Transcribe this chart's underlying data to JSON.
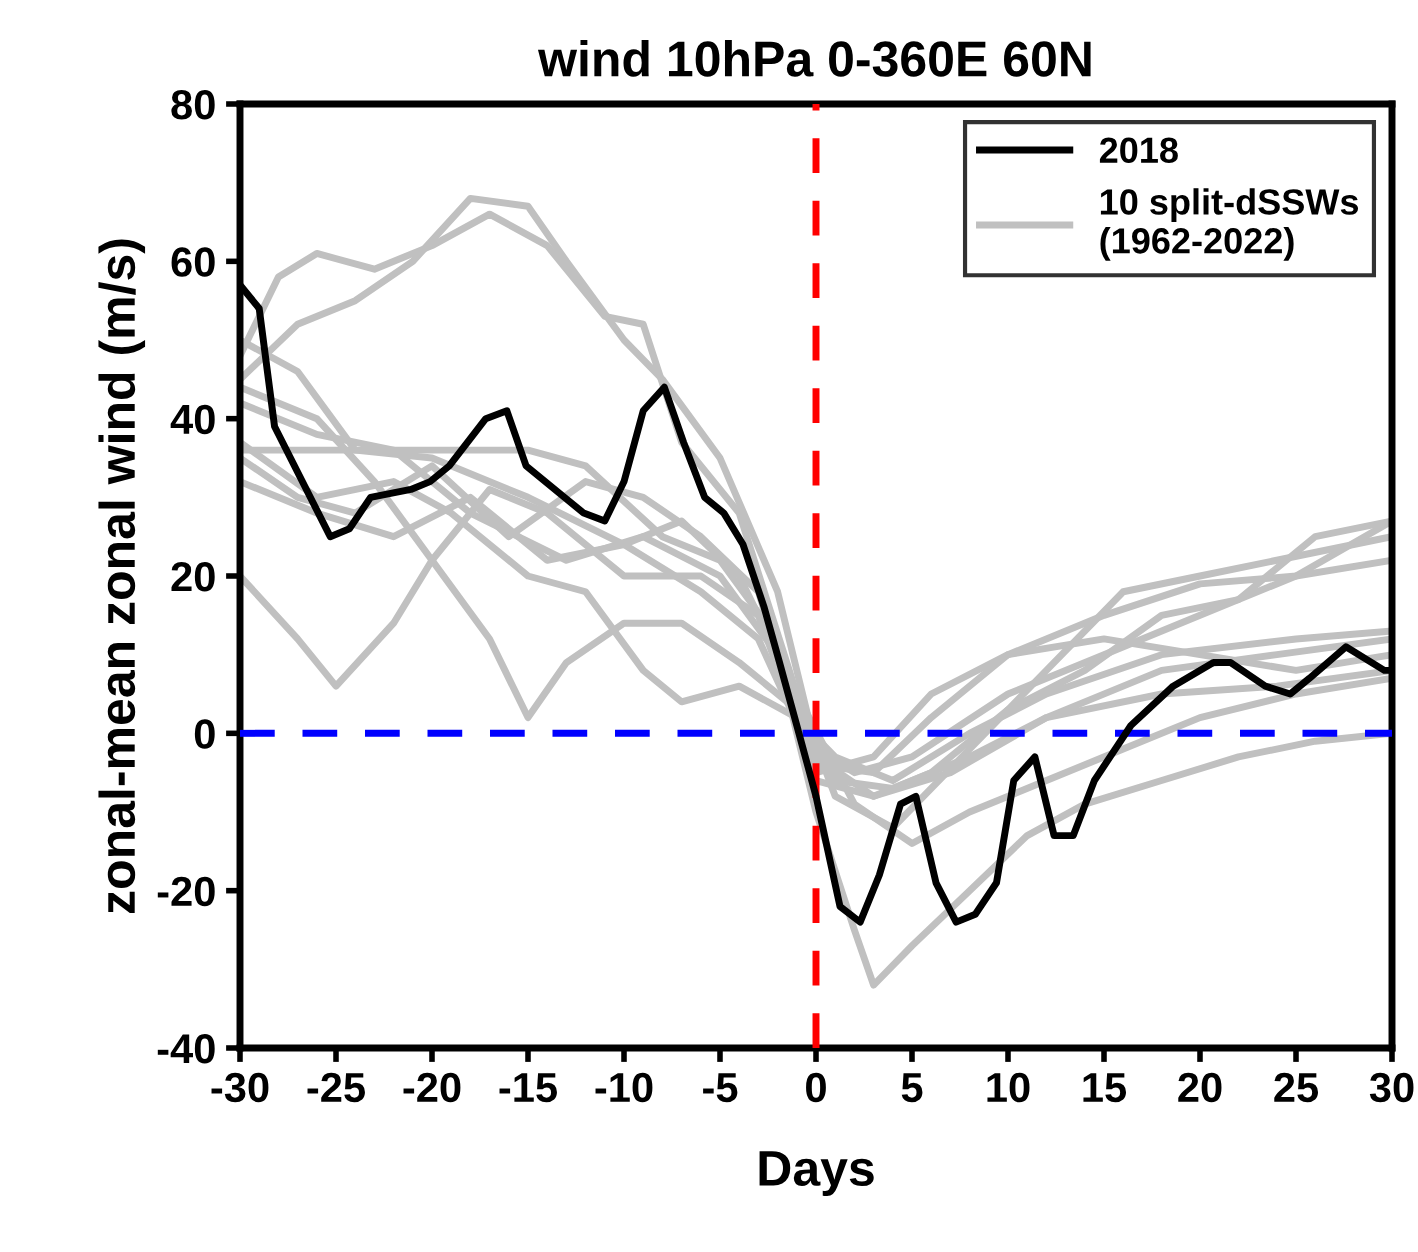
{
  "chart_data": {
    "type": "line",
    "title": "wind 10hPa 0-360E 60N",
    "xlabel": "Days",
    "ylabel": "zonal-mean zonal wind (m/s)",
    "xlim": [
      -30,
      30
    ],
    "xticks": [
      -30,
      -25,
      -20,
      -15,
      -10,
      -5,
      0,
      5,
      10,
      15,
      20,
      25,
      30
    ],
    "ylim": [
      -40,
      80
    ],
    "yticks": [
      -40,
      -20,
      0,
      20,
      40,
      60,
      80
    ],
    "grid": false,
    "legend": "top right",
    "marker": "none",
    "line_style": "solid",
    "ref_lines": [
      {
        "axis": "x",
        "value": 0,
        "color": "#ff0000",
        "line_style": "dashed"
      },
      {
        "axis": "y",
        "value": 0,
        "color": "#0000ff",
        "line_style": "dashed"
      }
    ],
    "series": [
      {
        "name": "2018",
        "color": "#000000",
        "x": [
          -30,
          -29,
          -28.2,
          -25.3,
          -24.3,
          -23.2,
          -21.1,
          -20.1,
          -19.1,
          -17.2,
          -16.1,
          -15.1,
          -13.1,
          -12.1,
          -11,
          -10,
          -9,
          -7.9,
          -6.9,
          -5.8,
          -4.8,
          -3.8,
          -2.7,
          -1.9,
          -1,
          0,
          1.25,
          2.3,
          3.3,
          4.4,
          5.2,
          6.25,
          7.3,
          8.3,
          9.4,
          10.3,
          11.4,
          12.4,
          13.4,
          14.5,
          16.4,
          18.6,
          20.7,
          21.6,
          23.4,
          24.7,
          25.7,
          27.6,
          29.6,
          30
        ],
        "values": [
          57,
          54,
          39,
          25,
          26,
          30,
          31,
          32,
          34,
          40,
          41,
          34,
          30,
          28,
          27,
          32,
          41,
          44,
          37,
          30,
          28,
          24,
          16,
          9,
          1,
          -8,
          -22,
          -24,
          -18,
          -9,
          -8,
          -19,
          -24,
          -23,
          -19,
          -6,
          -3,
          -13,
          -13,
          -6,
          1,
          6,
          9,
          9,
          6,
          5,
          7,
          11,
          8,
          8
        ]
      },
      {
        "name": "10 split-dSSWs\n(1962-2022)",
        "color": "#c0c0c0",
        "x": [
          -30,
          -27,
          -24,
          -21,
          -18,
          -15,
          -13,
          -10,
          -8,
          -5,
          -2,
          0,
          2,
          5,
          10,
          15,
          20,
          25,
          30
        ],
        "values": [
          45,
          52,
          55,
          60,
          68,
          67,
          60,
          50,
          45,
          35,
          18,
          -2,
          -5,
          -3,
          5,
          10,
          15,
          20,
          27
        ]
      },
      {
        "color": "#c0c0c0",
        "x": [
          -30,
          -28,
          -26,
          -23,
          -20,
          -17,
          -14,
          -11,
          -9,
          -7,
          -4,
          -1,
          1,
          4,
          8,
          12,
          16,
          20,
          24,
          30
        ],
        "values": [
          48,
          58,
          61,
          59,
          62,
          66,
          62,
          53,
          52,
          37,
          28,
          5,
          -8,
          -12,
          -2,
          8,
          18,
          20,
          22,
          25
        ]
      },
      {
        "color": "#c0c0c0",
        "x": [
          -30,
          -25,
          -20,
          -15,
          -12,
          -8,
          -5,
          -2,
          0,
          3,
          7,
          12,
          18,
          24,
          30
        ],
        "values": [
          36,
          36,
          36,
          36,
          34,
          25,
          22,
          12,
          -3,
          -8,
          -5,
          2,
          8,
          10,
          12
        ]
      },
      {
        "color": "#c0c0c0",
        "x": [
          -30,
          -27,
          -25,
          -22,
          -20,
          -17,
          -14,
          -10,
          -6,
          -3,
          0,
          3,
          6,
          10,
          15,
          20,
          25,
          30
        ],
        "values": [
          20,
          12,
          6,
          14,
          22,
          31,
          28,
          20,
          20,
          15,
          -5,
          -3,
          5,
          10,
          15,
          19,
          20,
          22
        ]
      },
      {
        "color": "#c0c0c0",
        "x": [
          -30,
          -26,
          -23,
          -20,
          -17,
          -15,
          -13,
          -10,
          -7,
          -4,
          -1,
          1,
          4,
          8,
          12,
          18,
          24,
          30
        ],
        "values": [
          44,
          40,
          32,
          22,
          12,
          2,
          9,
          14,
          14,
          9,
          3,
          -6,
          -7,
          -3,
          2,
          5,
          6,
          8
        ]
      },
      {
        "color": "#c0c0c0",
        "x": [
          -30,
          -26,
          -22,
          -19,
          -15,
          -12,
          -9,
          -7,
          -4,
          -1,
          1,
          4,
          8,
          12,
          18,
          25,
          30
        ],
        "values": [
          37,
          30,
          32,
          28,
          20,
          18,
          8,
          4,
          6,
          2,
          -3,
          -6,
          0,
          5,
          10,
          12,
          13
        ]
      },
      {
        "color": "#c0c0c0",
        "x": [
          -30,
          -27,
          -24,
          -20,
          -15,
          -10,
          -6,
          -3,
          0,
          3,
          6,
          10,
          15,
          20,
          25,
          30
        ],
        "values": [
          50,
          46,
          36,
          35,
          30,
          24,
          18,
          12,
          -4,
          -5,
          2,
          10,
          12,
          10,
          8,
          10
        ]
      },
      {
        "color": "#c0c0c0",
        "x": [
          -30,
          -26,
          -22,
          -18,
          -13,
          -9,
          -5,
          -2,
          0,
          2,
          3,
          5,
          8,
          11,
          14,
          18,
          22,
          26,
          30
        ],
        "values": [
          42,
          38,
          36,
          28,
          22,
          25,
          20,
          10,
          -10,
          -25,
          -32,
          -27,
          -20,
          -13,
          -9,
          -6,
          -3,
          -1,
          0
        ]
      },
      {
        "color": "#c0c0c0",
        "x": [
          -30,
          -27,
          -24,
          -20,
          -16,
          -12,
          -9,
          -6,
          -3,
          0,
          3,
          6,
          10,
          14,
          18,
          22,
          26,
          30
        ],
        "values": [
          35,
          30,
          28,
          34,
          25,
          32,
          30,
          25,
          18,
          -6,
          -8,
          -5,
          3,
          8,
          15,
          17,
          25,
          27
        ]
      },
      {
        "color": "#c0c0c0",
        "x": [
          -30,
          -26,
          -22,
          -18,
          -14,
          -10,
          -7,
          -4,
          -1,
          2,
          5,
          8,
          12,
          16,
          20,
          25,
          30
        ],
        "values": [
          32,
          28,
          25,
          30,
          22,
          24,
          27,
          20,
          5,
          -9,
          -14,
          -10,
          -6,
          -2,
          2,
          5,
          7
        ]
      }
    ]
  }
}
